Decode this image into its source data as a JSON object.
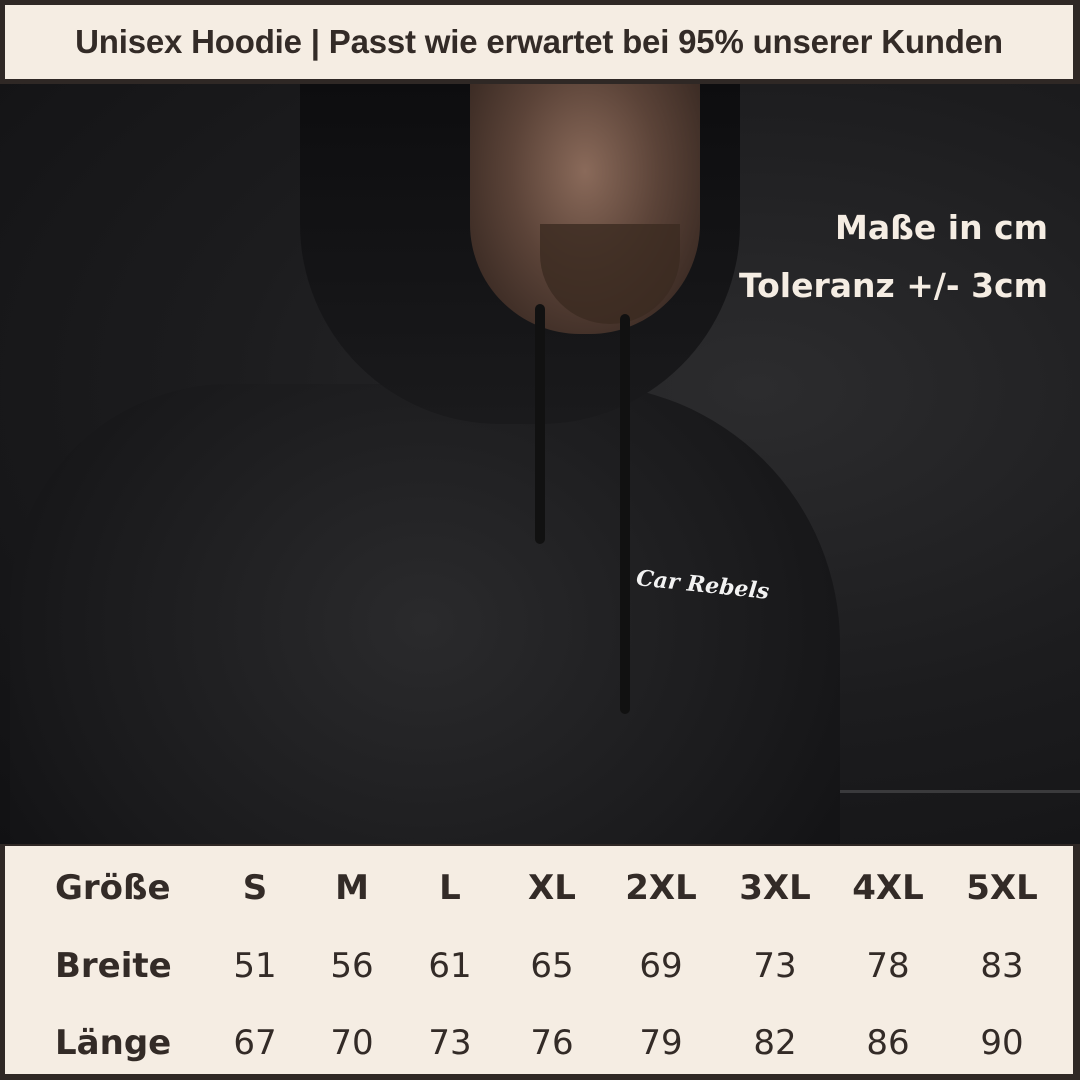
{
  "header": {
    "title": "Unisex Hoodie | Passt wie erwartet bei 95% unserer Kunden"
  },
  "photo": {
    "logo_text": "Car Rebels",
    "info_lines": [
      "Maße in cm",
      "Toleranz +/- 3cm"
    ]
  },
  "size_table": {
    "header_label": "Größe",
    "sizes": [
      "S",
      "M",
      "L",
      "XL",
      "2XL",
      "3XL",
      "4XL",
      "5XL"
    ],
    "rows": [
      {
        "label": "Breite",
        "values": [
          "51",
          "56",
          "61",
          "65",
          "69",
          "73",
          "78",
          "83"
        ]
      },
      {
        "label": "Länge",
        "values": [
          "67",
          "70",
          "73",
          "76",
          "79",
          "82",
          "86",
          "90"
        ]
      }
    ]
  },
  "colors": {
    "cream": "#f5ede3",
    "text": "#332b27",
    "frame": "#2f2825"
  }
}
